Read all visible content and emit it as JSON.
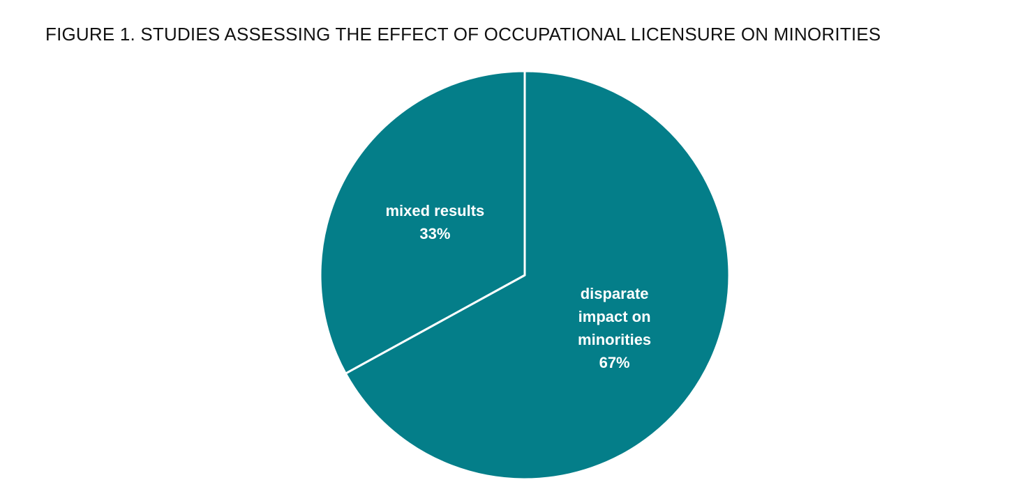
{
  "chart_data": {
    "type": "pie",
    "title": "FIGURE 1. STUDIES ASSESSING THE EFFECT OF OCCUPATIONAL LICENSURE ON MINORITIES",
    "categories": [
      "disparate impact on minorities",
      "mixed results"
    ],
    "values": [
      67,
      33
    ],
    "value_labels": [
      "67%",
      "33%"
    ],
    "color": "#047e89"
  }
}
